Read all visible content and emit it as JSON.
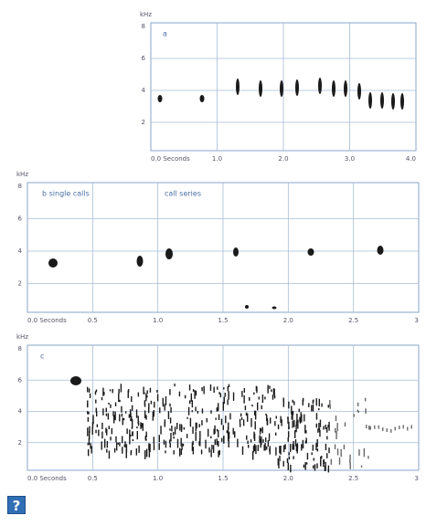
{
  "panels": [
    {
      "label": "a",
      "y_unit": "kHz",
      "yticks": [
        "8",
        "6",
        "4",
        "2"
      ],
      "xticks": [
        "0.0 Seconds",
        "1.0",
        "2.0",
        "3.0",
        "4.0"
      ]
    },
    {
      "label": "b  single calls",
      "label2": "call series",
      "y_unit": "kHz",
      "yticks": [
        "8",
        "6",
        "4",
        "2"
      ],
      "xticks": [
        "0.0 Seconds",
        "0.5",
        "1.0",
        "1.5",
        "2.0",
        "2.5",
        "3"
      ]
    },
    {
      "label": "c",
      "y_unit": "kHz",
      "yticks": [
        "8",
        "6",
        "4",
        "2"
      ],
      "xticks": [
        "0.0 Seconds",
        "0.5",
        "1.0",
        "1.5",
        "2.0",
        "2.5",
        "3"
      ]
    }
  ],
  "help_icon": "?"
}
